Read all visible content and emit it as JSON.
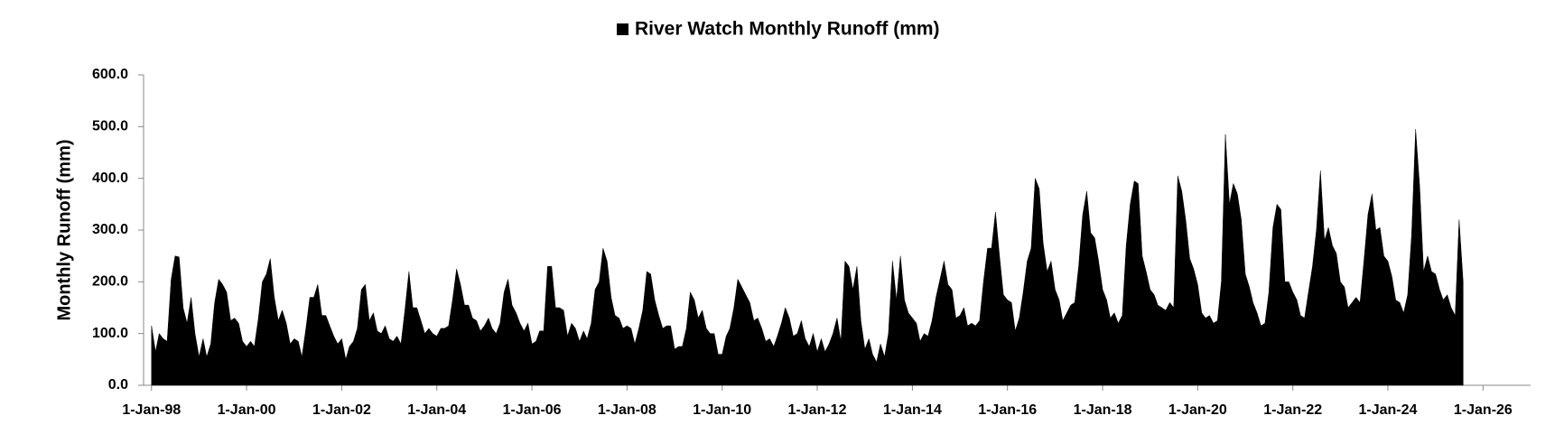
{
  "chart_data": {
    "type": "area",
    "y_label": "Monthly Runoff (mm)",
    "x": [
      "1998-01-01",
      "1998-02-01",
      "1998-03-01",
      "1998-04-01",
      "1998-05-01",
      "1998-06-01",
      "1998-07-01",
      "1998-08-01",
      "1998-09-01",
      "1998-10-01",
      "1998-11-01",
      "1998-12-01",
      "1999-01-01",
      "1999-02-01",
      "1999-03-01",
      "1999-04-01",
      "1999-05-01",
      "1999-06-01",
      "1999-07-01",
      "1999-08-01",
      "1999-09-01",
      "1999-10-01",
      "1999-11-01",
      "1999-12-01",
      "2000-01-01",
      "2000-02-01",
      "2000-03-01",
      "2000-04-01",
      "2000-05-01",
      "2000-06-01",
      "2000-07-01",
      "2000-08-01",
      "2000-09-01",
      "2000-10-01",
      "2000-11-01",
      "2000-12-01",
      "2001-01-01",
      "2001-02-01",
      "2001-03-01",
      "2001-04-01",
      "2001-05-01",
      "2001-06-01",
      "2001-07-01",
      "2001-08-01",
      "2001-09-01",
      "2001-10-01",
      "2001-11-01",
      "2001-12-01",
      "2002-01-01",
      "2002-02-01",
      "2002-03-01",
      "2002-04-01",
      "2002-05-01",
      "2002-06-01",
      "2002-07-01",
      "2002-08-01",
      "2002-09-01",
      "2002-10-01",
      "2002-11-01",
      "2002-12-01",
      "2003-01-01",
      "2003-02-01",
      "2003-03-01",
      "2003-04-01",
      "2003-05-01",
      "2003-06-01",
      "2003-07-01",
      "2003-08-01",
      "2003-09-01",
      "2003-10-01",
      "2003-11-01",
      "2003-12-01",
      "2004-01-01",
      "2004-02-01",
      "2004-03-01",
      "2004-04-01",
      "2004-05-01",
      "2004-06-01",
      "2004-07-01",
      "2004-08-01",
      "2004-09-01",
      "2004-10-01",
      "2004-11-01",
      "2004-12-01",
      "2005-01-01",
      "2005-02-01",
      "2005-03-01",
      "2005-04-01",
      "2005-05-01",
      "2005-06-01",
      "2005-07-01",
      "2005-08-01",
      "2005-09-01",
      "2005-10-01",
      "2005-11-01",
      "2005-12-01",
      "2006-01-01",
      "2006-02-01",
      "2006-03-01",
      "2006-04-01",
      "2006-05-01",
      "2006-06-01",
      "2006-07-01",
      "2006-08-01",
      "2006-09-01",
      "2006-10-01",
      "2006-11-01",
      "2006-12-01",
      "2007-01-01",
      "2007-02-01",
      "2007-03-01",
      "2007-04-01",
      "2007-05-01",
      "2007-06-01",
      "2007-07-01",
      "2007-08-01",
      "2007-09-01",
      "2007-10-01",
      "2007-11-01",
      "2007-12-01",
      "2008-01-01",
      "2008-02-01",
      "2008-03-01",
      "2008-04-01",
      "2008-05-01",
      "2008-06-01",
      "2008-07-01",
      "2008-08-01",
      "2008-09-01",
      "2008-10-01",
      "2008-11-01",
      "2008-12-01",
      "2009-01-01",
      "2009-02-01",
      "2009-03-01",
      "2009-04-01",
      "2009-05-01",
      "2009-06-01",
      "2009-07-01",
      "2009-08-01",
      "2009-09-01",
      "2009-10-01",
      "2009-11-01",
      "2009-12-01",
      "2010-01-01",
      "2010-02-01",
      "2010-03-01",
      "2010-04-01",
      "2010-05-01",
      "2010-06-01",
      "2010-07-01",
      "2010-08-01",
      "2010-09-01",
      "2010-10-01",
      "2010-11-01",
      "2010-12-01",
      "2011-01-01",
      "2011-02-01",
      "2011-03-01",
      "2011-04-01",
      "2011-05-01",
      "2011-06-01",
      "2011-07-01",
      "2011-08-01",
      "2011-09-01",
      "2011-10-01",
      "2011-11-01",
      "2011-12-01",
      "2012-01-01",
      "2012-02-01",
      "2012-03-01",
      "2012-04-01",
      "2012-05-01",
      "2012-06-01",
      "2012-07-01",
      "2012-08-01",
      "2012-09-01",
      "2012-10-01",
      "2012-11-01",
      "2012-12-01",
      "2013-01-01",
      "2013-02-01",
      "2013-03-01",
      "2013-04-01",
      "2013-05-01",
      "2013-06-01",
      "2013-07-01",
      "2013-08-01",
      "2013-09-01",
      "2013-10-01",
      "2013-11-01",
      "2013-12-01",
      "2014-01-01",
      "2014-02-01",
      "2014-03-01",
      "2014-04-01",
      "2014-05-01",
      "2014-06-01",
      "2014-07-01",
      "2014-08-01",
      "2014-09-01",
      "2014-10-01",
      "2014-11-01",
      "2014-12-01",
      "2015-01-01",
      "2015-02-01",
      "2015-03-01",
      "2015-04-01",
      "2015-05-01",
      "2015-06-01",
      "2015-07-01",
      "2015-08-01",
      "2015-09-01",
      "2015-10-01",
      "2015-11-01",
      "2015-12-01",
      "2016-01-01",
      "2016-02-01",
      "2016-03-01",
      "2016-04-01",
      "2016-05-01",
      "2016-06-01",
      "2016-07-01",
      "2016-08-01",
      "2016-09-01",
      "2016-10-01",
      "2016-11-01",
      "2016-12-01",
      "2017-01-01",
      "2017-02-01",
      "2017-03-01",
      "2017-04-01",
      "2017-05-01",
      "2017-06-01",
      "2017-07-01",
      "2017-08-01",
      "2017-09-01",
      "2017-10-01",
      "2017-11-01",
      "2017-12-01",
      "2018-01-01",
      "2018-02-01",
      "2018-03-01",
      "2018-04-01",
      "2018-05-01",
      "2018-06-01",
      "2018-07-01",
      "2018-08-01",
      "2018-09-01",
      "2018-10-01",
      "2018-11-01",
      "2018-12-01",
      "2019-01-01",
      "2019-02-01",
      "2019-03-01",
      "2019-04-01",
      "2019-05-01",
      "2019-06-01",
      "2019-07-01",
      "2019-08-01",
      "2019-09-01",
      "2019-10-01",
      "2019-11-01",
      "2019-12-01",
      "2020-01-01",
      "2020-02-01",
      "2020-03-01",
      "2020-04-01",
      "2020-05-01",
      "2020-06-01",
      "2020-07-01",
      "2020-08-01",
      "2020-09-01",
      "2020-10-01",
      "2020-11-01",
      "2020-12-01",
      "2021-01-01",
      "2021-02-01",
      "2021-03-01",
      "2021-04-01",
      "2021-05-01",
      "2021-06-01",
      "2021-07-01",
      "2021-08-01",
      "2021-09-01",
      "2021-10-01",
      "2021-11-01",
      "2021-12-01",
      "2022-01-01",
      "2022-02-01",
      "2022-03-01",
      "2022-04-01",
      "2022-05-01",
      "2022-06-01",
      "2022-07-01",
      "2022-08-01",
      "2022-09-01",
      "2022-10-01",
      "2022-11-01",
      "2022-12-01",
      "2023-01-01",
      "2023-02-01",
      "2023-03-01",
      "2023-04-01",
      "2023-05-01",
      "2023-06-01",
      "2023-07-01",
      "2023-08-01",
      "2023-09-01",
      "2023-10-01",
      "2023-11-01",
      "2023-12-01",
      "2024-01-01",
      "2024-02-01",
      "2024-03-01",
      "2024-04-01",
      "2024-05-01",
      "2024-06-01",
      "2024-07-01",
      "2024-08-01",
      "2024-09-01",
      "2024-10-01",
      "2024-11-01",
      "2024-12-01",
      "2025-01-01",
      "2025-02-01",
      "2025-03-01",
      "2025-04-01",
      "2025-05-01",
      "2025-06-01",
      "2025-07-01",
      "2025-08-01"
    ],
    "series": [
      {
        "name": "River Watch Monthly Runoff (mm)",
        "color": "#000000",
        "values": [
          115,
          65,
          100,
          90,
          85,
          205,
          250,
          248,
          150,
          120,
          170,
          100,
          55,
          90,
          55,
          80,
          160,
          205,
          195,
          180,
          125,
          130,
          120,
          85,
          75,
          85,
          75,
          130,
          200,
          215,
          245,
          170,
          125,
          145,
          120,
          80,
          90,
          85,
          55,
          110,
          170,
          170,
          195,
          135,
          135,
          115,
          95,
          80,
          90,
          50,
          75,
          85,
          110,
          185,
          195,
          125,
          140,
          105,
          100,
          115,
          90,
          85,
          95,
          80,
          145,
          220,
          150,
          150,
          125,
          100,
          110,
          100,
          95,
          110,
          110,
          115,
          165,
          225,
          195,
          155,
          155,
          130,
          125,
          105,
          115,
          130,
          110,
          100,
          120,
          180,
          205,
          155,
          140,
          120,
          105,
          120,
          80,
          85,
          105,
          105,
          230,
          230,
          150,
          150,
          145,
          95,
          120,
          110,
          85,
          105,
          90,
          120,
          185,
          200,
          265,
          240,
          170,
          135,
          130,
          110,
          115,
          110,
          80,
          110,
          145,
          220,
          215,
          165,
          135,
          110,
          115,
          115,
          70,
          75,
          75,
          110,
          180,
          165,
          130,
          145,
          110,
          100,
          100,
          60,
          60,
          95,
          110,
          150,
          205,
          190,
          175,
          160,
          125,
          130,
          110,
          85,
          90,
          75,
          95,
          120,
          150,
          130,
          95,
          100,
          125,
          90,
          75,
          100,
          65,
          90,
          65,
          80,
          100,
          130,
          85,
          240,
          230,
          185,
          230,
          125,
          70,
          90,
          60,
          45,
          80,
          55,
          100,
          240,
          165,
          250,
          165,
          140,
          130,
          120,
          85,
          100,
          95,
          125,
          170,
          205,
          240,
          195,
          185,
          130,
          135,
          150,
          115,
          120,
          115,
          125,
          200,
          265,
          265,
          335,
          250,
          175,
          165,
          160,
          105,
          130,
          180,
          240,
          265,
          400,
          380,
          275,
          220,
          240,
          185,
          165,
          125,
          140,
          155,
          160,
          230,
          330,
          375,
          295,
          285,
          240,
          185,
          165,
          130,
          140,
          120,
          135,
          270,
          350,
          395,
          390,
          250,
          220,
          185,
          175,
          155,
          150,
          145,
          160,
          150,
          405,
          375,
          320,
          245,
          225,
          195,
          140,
          130,
          135,
          120,
          125,
          200,
          485,
          350,
          390,
          370,
          320,
          215,
          190,
          160,
          140,
          115,
          120,
          180,
          305,
          350,
          340,
          200,
          200,
          180,
          165,
          135,
          130,
          180,
          230,
          300,
          415,
          280,
          305,
          270,
          255,
          200,
          190,
          150,
          160,
          170,
          160,
          240,
          330,
          370,
          300,
          305,
          250,
          240,
          210,
          165,
          160,
          140,
          175,
          290,
          495,
          385,
          220,
          250,
          220,
          215,
          185,
          165,
          175,
          150,
          135,
          320,
          200
        ]
      }
    ],
    "xlim": [
      "1997-11-01",
      "2027-01-01"
    ],
    "xticks": [
      {
        "value": "1998-01-01",
        "label": "1-Jan-98"
      },
      {
        "value": "2000-01-01",
        "label": "1-Jan-00"
      },
      {
        "value": "2002-01-01",
        "label": "1-Jan-02"
      },
      {
        "value": "2004-01-01",
        "label": "1-Jan-04"
      },
      {
        "value": "2006-01-01",
        "label": "1-Jan-06"
      },
      {
        "value": "2008-01-01",
        "label": "1-Jan-08"
      },
      {
        "value": "2010-01-01",
        "label": "1-Jan-10"
      },
      {
        "value": "2012-01-01",
        "label": "1-Jan-12"
      },
      {
        "value": "2014-01-01",
        "label": "1-Jan-14"
      },
      {
        "value": "2016-01-01",
        "label": "1-Jan-16"
      },
      {
        "value": "2018-01-01",
        "label": "1-Jan-18"
      },
      {
        "value": "2020-01-01",
        "label": "1-Jan-20"
      },
      {
        "value": "2022-01-01",
        "label": "1-Jan-22"
      },
      {
        "value": "2024-01-01",
        "label": "1-Jan-24"
      },
      {
        "value": "2026-01-01",
        "label": "1-Jan-26"
      }
    ],
    "ylim": [
      0,
      600
    ],
    "yticks": [
      {
        "value": 0,
        "label": "0.0"
      },
      {
        "value": 100,
        "label": "100.0"
      },
      {
        "value": 200,
        "label": "200.0"
      },
      {
        "value": 300,
        "label": "300.0"
      },
      {
        "value": 400,
        "label": "400.0"
      },
      {
        "value": 500,
        "label": "500.0"
      },
      {
        "value": 600,
        "label": "600.0"
      }
    ],
    "grid": false,
    "legend": "top"
  }
}
